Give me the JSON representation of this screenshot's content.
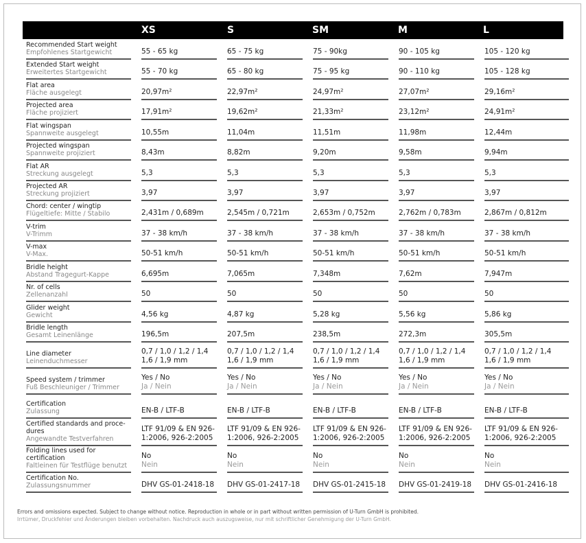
{
  "sizes": [
    "XS",
    "S",
    "SM",
    "M",
    "L"
  ],
  "rows": [
    {
      "en": "Recommended Start weight",
      "de": "Empfohlenes Startgewicht",
      "values": [
        "55 - 65 kg",
        "65 - 75 kg",
        "75 - 90kg",
        "90 - 105 kg",
        "105 - 120 kg"
      ]
    },
    {
      "en": "Extended Start weight",
      "de": "Erweitertes Startgewicht",
      "values": [
        "55 - 70 kg",
        "65 - 80 kg",
        "75 - 95 kg",
        "90 - 110 kg",
        "105 - 128 kg"
      ]
    },
    {
      "en": "Flat area",
      "de": "Fläche ausgelegt",
      "values": [
        "20,97m²",
        "22,97m²",
        "24,97m²",
        "27,07m²",
        "29,16m²"
      ]
    },
    {
      "en": "Projected area",
      "de": "Fläche projiziert",
      "values": [
        "17,91m²",
        "19,62m²",
        "21,33m²",
        "23,12m²",
        "24,91m²"
      ]
    },
    {
      "en": "Flat wingspan",
      "de": "Spannweite ausgelegt",
      "values": [
        "10,55m",
        "11,04m",
        "11,51m",
        "11,98m",
        "12,44m"
      ]
    },
    {
      "en": "Projected wingspan",
      "de": "Spannweite projiziert",
      "values": [
        "8,43m",
        "8,82m",
        "9,20m",
        "9,58m",
        "9,94m"
      ]
    },
    {
      "en": "Flat AR",
      "de": "Streckung ausgelegt",
      "values": [
        "5,3",
        "5,3",
        "5,3",
        "5,3",
        "5,3"
      ]
    },
    {
      "en": "Projected AR",
      "de": "Streckung projiziert",
      "values": [
        "3,97",
        "3,97",
        "3,97",
        "3,97",
        "3,97"
      ]
    },
    {
      "en": "Chord: center / wingtip",
      "de": "Flügeltiefe: Mitte / Stabilo",
      "values": [
        "2,431m / 0,689m",
        "2,545m / 0,721m",
        "2,653m / 0,752m",
        "2,762m / 0,783m",
        "2,867m / 0,812m"
      ]
    },
    {
      "en": "V-trim",
      "de": "V-Trimm",
      "values": [
        "37 - 38 km/h",
        "37 - 38 km/h",
        "37 - 38 km/h",
        "37 - 38 km/h",
        "37 - 38 km/h"
      ]
    },
    {
      "en": "V-max",
      "de": "V-Max.",
      "values": [
        "50-51 km/h",
        "50-51 km/h",
        "50-51 km/h",
        "50-51 km/h",
        "50-51 km/h"
      ]
    },
    {
      "en": "Bridle height",
      "de": "Abstand Tragegurt-Kappe",
      "values": [
        "6,695m",
        "7,065m",
        "7,348m",
        "7,62m",
        "7,947m"
      ]
    },
    {
      "en": "Nr. of cells",
      "de": "Zellenanzahl",
      "values": [
        "50",
        "50",
        "50",
        "50",
        "50"
      ]
    },
    {
      "en": "Glider weight",
      "de": "Gewicht",
      "values": [
        "4,56 kg",
        "4,87 kg",
        "5,28 kg",
        "5,56 kg",
        "5,86 kg"
      ]
    },
    {
      "en": "Bridle length",
      "de": "Gesamt Leinenlänge",
      "values": [
        "196,5m",
        "207,5m",
        "238,5m",
        "272,3m",
        "305,5m"
      ]
    },
    {
      "en": "Line diameter",
      "de": "Leinenduchmesser",
      "values": [
        "0,7 / 1,0 / 1,2 / 1,4\n1,6 / 1,9 mm",
        "0,7 / 1,0 / 1,2 / 1,4\n1,6 / 1,9 mm",
        "0,7 / 1,0 / 1,2 / 1,4\n1,6 / 1,9 mm",
        "0,7 / 1,0 / 1,2 / 1,4\n1,6 / 1,9 mm",
        "0,7 / 1,0 / 1,2 / 1,4\n1,6 / 1,9 mm"
      ]
    },
    {
      "en": "Speed system / trimmer",
      "de": "Fuß Beschleuniger / Trimmer",
      "values": [
        "Yes / No",
        "Yes / No",
        "Yes / No",
        "Yes / No",
        "Yes / No"
      ],
      "values_de": [
        "Ja / Nein",
        "Ja / Nein",
        "Ja / Nein",
        "Ja / Nein",
        "Ja / Nein"
      ]
    },
    {
      "en": "Certification",
      "de": "Zulassung",
      "values": [
        "EN-B / LTF-B",
        "EN-B / LTF-B",
        "EN-B / LTF-B",
        "EN-B / LTF-B",
        "EN-B / LTF-B"
      ]
    },
    {
      "en": "Certified standards and proce-\ndures",
      "de": "Angewandte Testverfahren",
      "values": [
        "LTF 91/09 & EN 926-\n1:2006, 926-2:2005",
        "LTF 91/09 & EN 926-\n1:2006, 926-2:2005",
        "LTF 91/09 & EN 926-\n1:2006, 926-2:2005",
        "LTF 91/09 & EN 926-\n1:2006, 926-2:2005",
        "LTF 91/09 & EN 926-\n1:2006, 926-2:2005"
      ]
    },
    {
      "en": "Folding lines used for certification",
      "de": "Faltleinen für Testflüge benutzt",
      "values": [
        "No",
        "No",
        "No",
        "No",
        "No"
      ],
      "values_de": [
        "Nein",
        "Nein",
        "Nein",
        "Nein",
        "Nein"
      ]
    },
    {
      "en": "Certification No.",
      "de": "Zulassungsnummer",
      "values": [
        "DHV GS-01-2418-18",
        "DHV GS-01-2417-18",
        "DHV GS-01-2415-18",
        "DHV GS-01-2419-18",
        "DHV GS-01-2416-18"
      ]
    }
  ],
  "footer": {
    "en": "Errors and omissions expected. Subject to change without notice. Reproduction in whole or in part without written permission of U-Turn GmbH is prohibited.",
    "de": "Irrtümer, Druckfehler und Änderungen bleiben vorbehalten. Nachdruck auch auszugsweise, nur mit schriftlicher Genehmigung der U-Turn GmbH."
  }
}
